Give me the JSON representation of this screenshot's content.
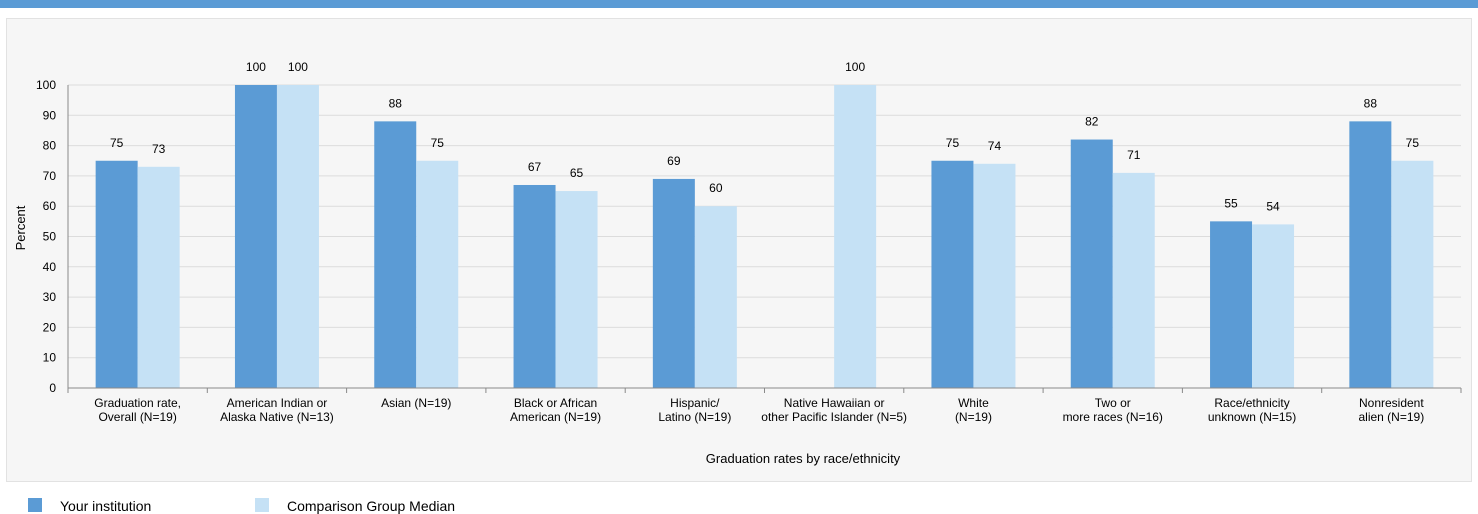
{
  "chart_data": {
    "type": "bar",
    "xlabel": "Graduation rates by race/ethnicity",
    "ylabel": "Percent",
    "ylim": [
      0,
      100
    ],
    "yticks": [
      0,
      10,
      20,
      30,
      40,
      50,
      60,
      70,
      80,
      90,
      100
    ],
    "grid": true,
    "legend_position": "bottom-left",
    "categories": [
      [
        "Graduation rate,",
        "Overall (N=19)"
      ],
      [
        "American Indian or",
        "Alaska Native (N=13)"
      ],
      [
        "Asian (N=19)"
      ],
      [
        "Black or African",
        "American (N=19)"
      ],
      [
        "Hispanic/",
        "Latino (N=19)"
      ],
      [
        "Native Hawaiian or",
        "other Pacific Islander (N=5)"
      ],
      [
        "White",
        "(N=19)"
      ],
      [
        "Two or",
        "more races (N=16)"
      ],
      [
        "Race/ethnicity",
        "unknown (N=15)"
      ],
      [
        "Nonresident",
        "alien (N=19)"
      ]
    ],
    "series": [
      {
        "name": "Your institution",
        "color": "#5b9bd5",
        "values": [
          75,
          100,
          88,
          67,
          69,
          null,
          75,
          82,
          55,
          88
        ]
      },
      {
        "name": "Comparison Group Median",
        "color": "#c5e1f5",
        "values": [
          73,
          100,
          75,
          65,
          60,
          100,
          74,
          71,
          54,
          75
        ]
      }
    ]
  },
  "legend": {
    "institution_label": "Your institution",
    "median_label": "Comparison Group Median"
  }
}
